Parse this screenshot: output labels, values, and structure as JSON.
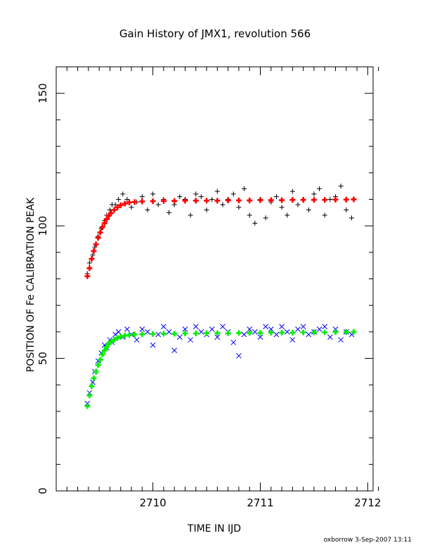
{
  "chart_data": {
    "type": "scatter",
    "title": "Gain History of JMX1, revolution 566",
    "xlabel": "TIME IN IJD",
    "ylabel": "POSITION OF Fe CALIBRATION PEAK",
    "xlim": [
      2709.1,
      2712.05
    ],
    "ylim": [
      0,
      160
    ],
    "x_ticks": [
      2710,
      2711,
      2712
    ],
    "y_ticks": [
      0,
      50,
      100,
      150
    ],
    "grid": false,
    "legend": "none",
    "footer": "oxborrow  3-Sep-2007 13:11",
    "series": [
      {
        "marker": "plus",
        "color": "#000000",
        "x": [
          2709.39,
          2709.41,
          2709.44,
          2709.46,
          2709.49,
          2709.52,
          2709.55,
          2709.57,
          2709.6,
          2709.62,
          2709.65,
          2709.68,
          2709.72,
          2709.76,
          2709.8,
          2709.85,
          2709.9,
          2709.95,
          2710.0,
          2710.05,
          2710.1,
          2710.15,
          2710.2,
          2710.25,
          2710.3,
          2710.35,
          2710.4,
          2710.45,
          2710.5,
          2710.55,
          2710.6,
          2710.65,
          2710.7,
          2710.75,
          2710.8,
          2710.85,
          2710.9,
          2710.95,
          2711.0,
          2711.05,
          2711.1,
          2711.15,
          2711.2,
          2711.25,
          2711.3,
          2711.35,
          2711.4,
          2711.45,
          2711.5,
          2711.55,
          2711.6,
          2711.65,
          2711.7,
          2711.75,
          2711.8,
          2711.85
        ],
        "y": [
          82,
          86,
          89,
          92,
          96,
          99,
          102,
          104,
          106,
          108,
          108,
          110,
          112,
          110,
          107,
          109,
          111,
          106,
          112,
          108,
          110,
          105,
          108,
          111,
          110,
          104,
          112,
          111,
          106,
          110,
          113,
          108,
          110,
          112,
          107,
          114,
          104,
          101,
          110,
          103,
          109,
          111,
          107,
          104,
          113,
          108,
          110,
          106,
          112,
          114,
          104,
          110,
          111,
          115,
          106,
          103
        ]
      },
      {
        "marker": "x",
        "color": "#0000ff",
        "x": [
          2709.39,
          2709.41,
          2709.44,
          2709.46,
          2709.49,
          2709.52,
          2709.55,
          2709.57,
          2709.6,
          2709.62,
          2709.65,
          2709.68,
          2709.72,
          2709.76,
          2709.8,
          2709.85,
          2709.9,
          2709.95,
          2710.0,
          2710.05,
          2710.1,
          2710.15,
          2710.2,
          2710.25,
          2710.3,
          2710.35,
          2710.4,
          2710.45,
          2710.5,
          2710.55,
          2710.6,
          2710.65,
          2710.7,
          2710.75,
          2710.8,
          2710.85,
          2710.9,
          2710.95,
          2711.0,
          2711.05,
          2711.1,
          2711.15,
          2711.2,
          2711.25,
          2711.3,
          2711.35,
          2711.4,
          2711.45,
          2711.5,
          2711.55,
          2711.6,
          2711.65,
          2711.7,
          2711.75,
          2711.8,
          2711.85
        ],
        "y": [
          33,
          37,
          41,
          45,
          49,
          52,
          55,
          54,
          57,
          56,
          59,
          60,
          58,
          61,
          59,
          57,
          61,
          60,
          55,
          59,
          62,
          60,
          53,
          58,
          61,
          57,
          62,
          60,
          59,
          61,
          58,
          62,
          60,
          56,
          51,
          59,
          61,
          60,
          58,
          62,
          61,
          59,
          62,
          60,
          57,
          61,
          62,
          59,
          60,
          61,
          62,
          58,
          61,
          57,
          60,
          59
        ]
      },
      {
        "marker": "plus",
        "color": "#ff0000",
        "x": [
          2709.39,
          2709.41,
          2709.43,
          2709.45,
          2709.47,
          2709.49,
          2709.51,
          2709.53,
          2709.55,
          2709.57,
          2709.59,
          2709.61,
          2709.64,
          2709.67,
          2709.7,
          2709.74,
          2709.78,
          2709.83,
          2709.9,
          2710.0,
          2710.1,
          2710.2,
          2710.3,
          2710.4,
          2710.5,
          2710.6,
          2710.7,
          2710.8,
          2710.9,
          2711.0,
          2711.1,
          2711.2,
          2711.3,
          2711.4,
          2711.5,
          2711.6,
          2711.7,
          2711.8,
          2711.87
        ],
        "y": [
          81,
          84,
          87.5,
          90.5,
          93,
          95.5,
          97.5,
          99.5,
          101,
          102.5,
          103.8,
          104.8,
          106,
          107,
          107.8,
          108.4,
          108.8,
          109,
          109.2,
          109.3,
          109.4,
          109.4,
          109.5,
          109.5,
          109.5,
          109.5,
          109.6,
          109.6,
          109.6,
          109.7,
          109.7,
          109.7,
          109.8,
          109.8,
          109.8,
          109.8,
          109.9,
          109.9,
          110
        ]
      },
      {
        "marker": "plus",
        "color": "#00ee00",
        "x": [
          2709.39,
          2709.41,
          2709.43,
          2709.45,
          2709.47,
          2709.49,
          2709.51,
          2709.53,
          2709.55,
          2709.57,
          2709.59,
          2709.61,
          2709.64,
          2709.67,
          2709.7,
          2709.74,
          2709.78,
          2709.83,
          2709.9,
          2710.0,
          2710.1,
          2710.2,
          2710.3,
          2710.4,
          2710.5,
          2710.6,
          2710.7,
          2710.8,
          2710.9,
          2711.0,
          2711.1,
          2711.2,
          2711.3,
          2711.4,
          2711.5,
          2711.6,
          2711.7,
          2711.8,
          2711.87
        ],
        "y": [
          32,
          36,
          39.5,
          42.5,
          45,
          47.5,
          49.5,
          51.5,
          53,
          54.3,
          55.4,
          56.2,
          57,
          57.7,
          58.2,
          58.6,
          58.8,
          59,
          59.1,
          59.2,
          59.3,
          59.3,
          59.4,
          59.4,
          59.5,
          59.5,
          59.5,
          59.6,
          59.6,
          59.6,
          59.7,
          59.7,
          59.7,
          59.8,
          59.8,
          59.8,
          59.9,
          59.9,
          60
        ]
      }
    ]
  }
}
